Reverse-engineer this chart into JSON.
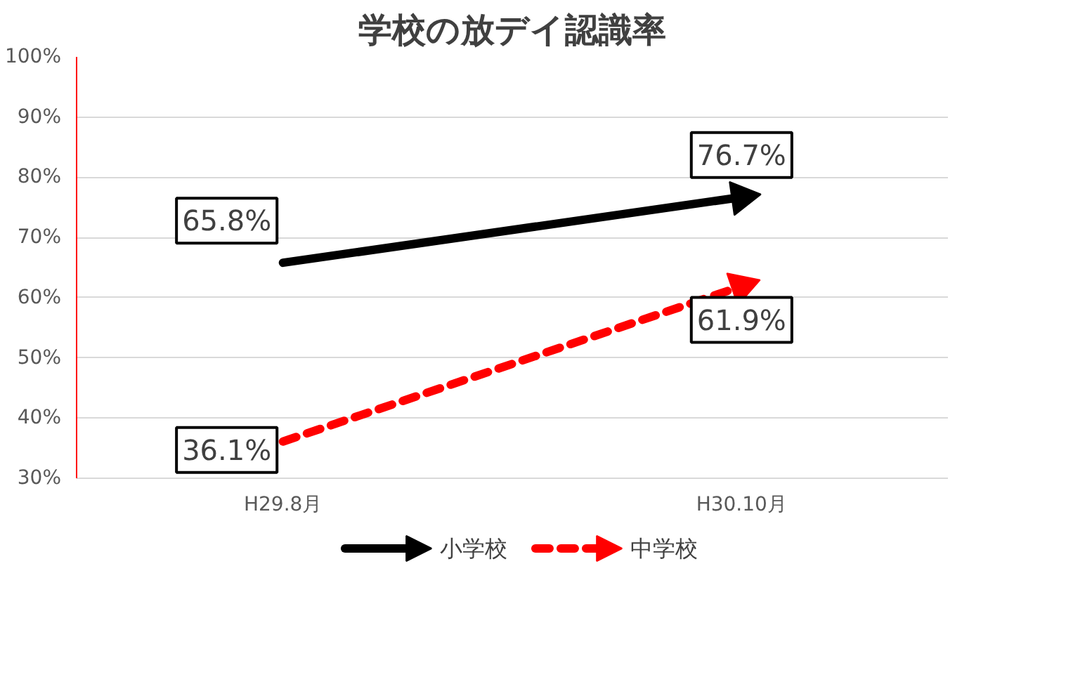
{
  "chart_data": {
    "type": "line",
    "title": "学校の放デイ認識率",
    "categories": [
      "H29.8月",
      "H30.10月"
    ],
    "series": [
      {
        "name": "小学校",
        "color": "#000000",
        "values": [
          65.8,
          76.7
        ],
        "value_labels": [
          "65.8%",
          "76.7%"
        ],
        "line_style": "solid"
      },
      {
        "name": "中学校",
        "color": "#ff0000",
        "values": [
          36.1,
          61.9
        ],
        "value_labels": [
          "36.1%",
          "61.9%"
        ],
        "line_style": "dashed"
      }
    ],
    "ylim": [
      30,
      100
    ],
    "yticks": [
      {
        "value": 30,
        "label": "30%"
      },
      {
        "value": 40,
        "label": "40%"
      },
      {
        "value": 50,
        "label": "50%"
      },
      {
        "value": 60,
        "label": "60%"
      },
      {
        "value": 70,
        "label": "70%"
      },
      {
        "value": 80,
        "label": "80%"
      },
      {
        "value": 90,
        "label": "90%"
      },
      {
        "value": 100,
        "label": "100%"
      }
    ],
    "grid": "y",
    "legend": "bottom"
  }
}
